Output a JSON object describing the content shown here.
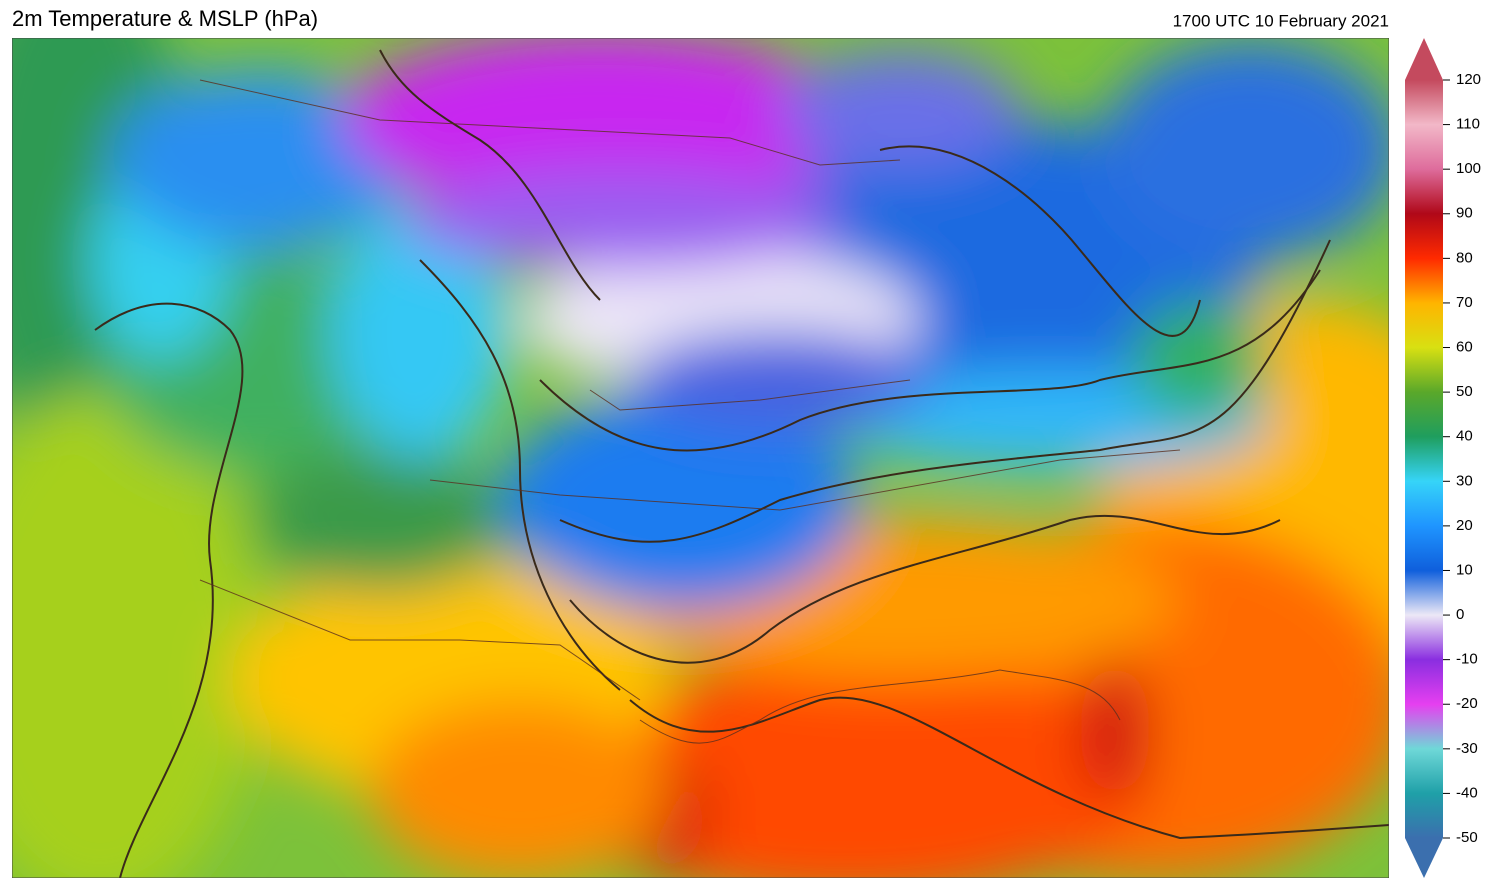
{
  "header": {
    "title": "2m Temperature & MSLP (hPa)",
    "timestamp": "1700 UTC 10 February 2021"
  },
  "colorbar": {
    "ticks": [
      -50,
      -40,
      -30,
      -20,
      -10,
      0,
      10,
      20,
      30,
      40,
      50,
      60,
      70,
      80,
      90,
      100,
      110,
      120
    ],
    "colors": [
      "#3b6fae",
      "#1fa0a8",
      "#6fd8d8",
      "#e63ff0",
      "#8a2ee0",
      "#ece8f6",
      "#0f5fdc",
      "#1f95ff",
      "#36d4f8",
      "#1f9e5e",
      "#5aa82a",
      "#d8e012",
      "#ffb400",
      "#ff2a00",
      "#b00818",
      "#de6c9c",
      "#f2b8c8",
      "#c44a5e"
    ]
  }
}
